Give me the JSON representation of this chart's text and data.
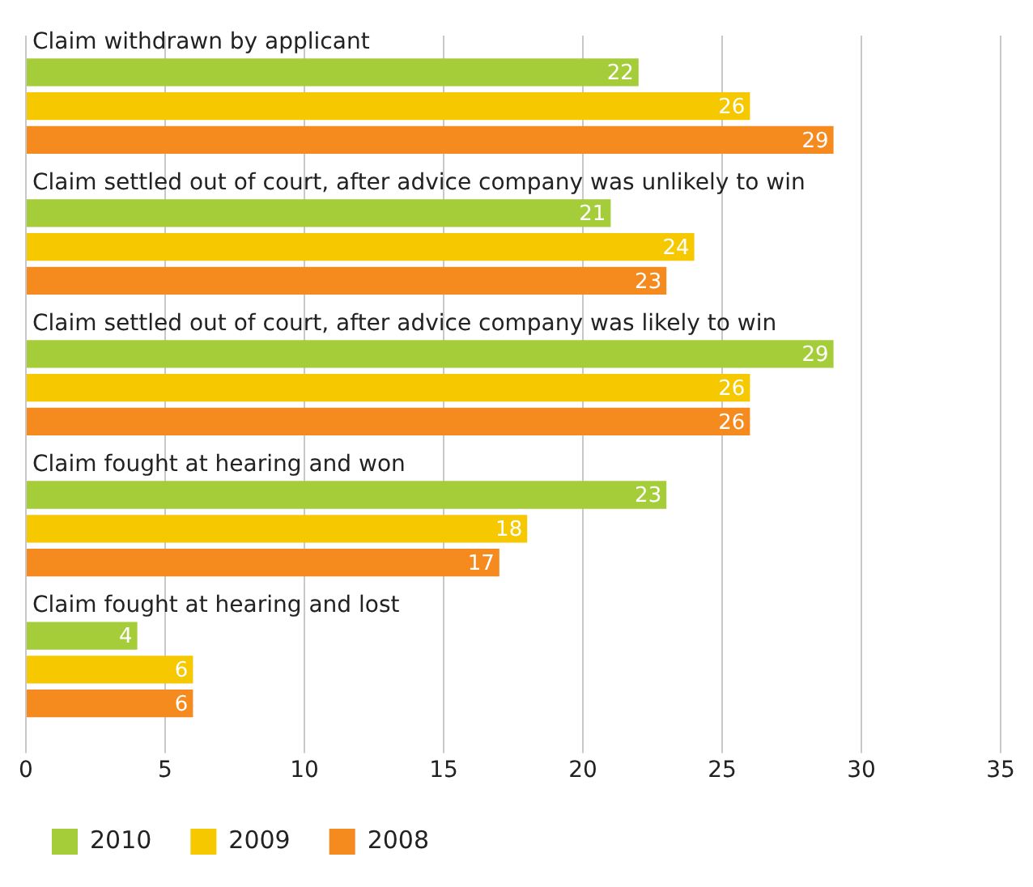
{
  "chart_data": {
    "type": "bar",
    "orientation": "horizontal",
    "categories": [
      "Claim withdrawn by applicant",
      "Claim settled out of court, after advice company was unlikely to win",
      "Claim settled out of court, after advice company was likely to win",
      "Claim fought at hearing and won",
      "Claim fought at hearing and lost"
    ],
    "series": [
      {
        "name": "2010",
        "color": "#a5cd39",
        "values": [
          22,
          21,
          29,
          23,
          4
        ]
      },
      {
        "name": "2009",
        "color": "#f5c800",
        "values": [
          26,
          24,
          26,
          18,
          6
        ]
      },
      {
        "name": "2008",
        "color": "#f58a1f",
        "values": [
          29,
          23,
          26,
          17,
          6
        ]
      }
    ],
    "xlim": [
      0,
      35
    ],
    "xticks": [
      0,
      5,
      10,
      15,
      20,
      25,
      30,
      35
    ],
    "grid": "x",
    "legend": "bottom left",
    "data_labels": true
  }
}
